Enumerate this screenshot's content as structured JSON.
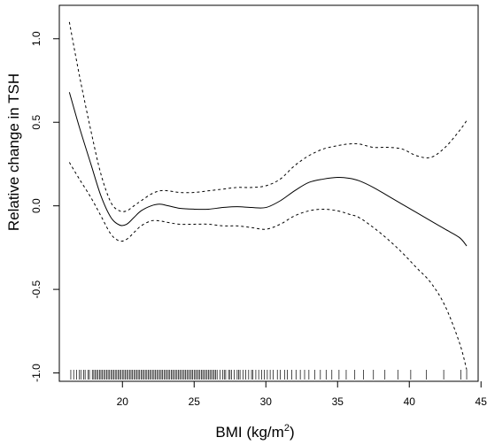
{
  "chart_data": {
    "type": "line",
    "title": "",
    "xlabel": "BMI (kg/m",
    "xlabel_superscript": "2",
    "xlabel_suffix": ")",
    "ylabel": "Relative change in TSH",
    "xlim": [
      15.6,
      44.8
    ],
    "ylim": [
      -1.05,
      1.2
    ],
    "x_ticks": [
      20,
      25,
      30,
      35,
      40,
      45
    ],
    "y_ticks": [
      -1.0,
      -0.5,
      0.0,
      0.5,
      1.0
    ],
    "y_tick_labels": [
      "-1.0",
      "-0.5",
      "0.0",
      "0.5",
      "1.0"
    ],
    "grid": false,
    "legend": "none",
    "series": [
      {
        "style": "solid",
        "x": [
          16.3,
          17.0,
          17.8,
          18.5,
          19.2,
          19.8,
          20.3,
          20.8,
          21.3,
          22.0,
          22.6,
          23.2,
          24.0,
          25.0,
          26.0,
          27.0,
          28.0,
          29.0,
          30.0,
          31.0,
          32.0,
          33.0,
          34.0,
          35.0,
          35.8,
          36.5,
          37.5,
          38.5,
          39.5,
          40.5,
          41.5,
          42.5,
          43.5,
          44.0
        ],
        "y": [
          0.68,
          0.47,
          0.25,
          0.06,
          -0.07,
          -0.115,
          -0.11,
          -0.07,
          -0.03,
          0.0,
          0.01,
          0.0,
          -0.015,
          -0.02,
          -0.02,
          -0.01,
          -0.005,
          -0.01,
          -0.01,
          0.03,
          0.09,
          0.14,
          0.16,
          0.17,
          0.165,
          0.15,
          0.11,
          0.06,
          0.01,
          -0.04,
          -0.09,
          -0.14,
          -0.19,
          -0.24
        ]
      },
      {
        "style": "dashed",
        "x": [
          16.3,
          17.0,
          17.8,
          18.5,
          19.2,
          19.8,
          20.3,
          20.8,
          21.3,
          22.0,
          22.6,
          23.2,
          24.0,
          25.0,
          26.0,
          27.0,
          28.0,
          29.0,
          30.0,
          31.0,
          32.0,
          33.0,
          34.0,
          35.0,
          35.8,
          36.5,
          37.5,
          38.5,
          39.5,
          40.5,
          41.5,
          42.5,
          43.5,
          44.0
        ],
        "y": [
          1.1,
          0.78,
          0.45,
          0.19,
          0.02,
          -0.03,
          -0.03,
          0.0,
          0.03,
          0.07,
          0.09,
          0.09,
          0.08,
          0.08,
          0.09,
          0.1,
          0.11,
          0.11,
          0.12,
          0.16,
          0.24,
          0.3,
          0.34,
          0.36,
          0.37,
          0.37,
          0.35,
          0.35,
          0.34,
          0.3,
          0.29,
          0.35,
          0.45,
          0.51
        ]
      },
      {
        "style": "dashed",
        "x": [
          16.3,
          17.0,
          17.8,
          18.5,
          19.2,
          19.8,
          20.3,
          20.8,
          21.3,
          22.0,
          22.6,
          23.2,
          24.0,
          25.0,
          26.0,
          27.0,
          28.0,
          29.0,
          30.0,
          31.0,
          32.0,
          33.0,
          34.0,
          35.0,
          35.8,
          36.5,
          37.5,
          38.5,
          39.5,
          40.5,
          41.5,
          42.5,
          43.5,
          44.0
        ],
        "y": [
          0.26,
          0.16,
          0.05,
          -0.06,
          -0.17,
          -0.21,
          -0.2,
          -0.16,
          -0.12,
          -0.09,
          -0.09,
          -0.1,
          -0.11,
          -0.11,
          -0.11,
          -0.12,
          -0.12,
          -0.13,
          -0.14,
          -0.11,
          -0.06,
          -0.03,
          -0.02,
          -0.03,
          -0.05,
          -0.07,
          -0.13,
          -0.2,
          -0.28,
          -0.37,
          -0.46,
          -0.6,
          -0.82,
          -0.98
        ]
      }
    ],
    "rug_x": [
      16.4,
      16.6,
      16.8,
      17.0,
      17.1,
      17.3,
      17.4,
      17.6,
      17.7,
      17.9,
      18.0,
      18.1,
      18.2,
      18.3,
      18.4,
      18.5,
      18.6,
      18.7,
      18.8,
      18.9,
      19.0,
      19.1,
      19.2,
      19.3,
      19.4,
      19.5,
      19.6,
      19.7,
      19.8,
      19.9,
      20.0,
      20.1,
      20.2,
      20.3,
      20.4,
      20.5,
      20.6,
      20.7,
      20.8,
      20.9,
      21.0,
      21.1,
      21.2,
      21.3,
      21.4,
      21.5,
      21.6,
      21.7,
      21.8,
      21.9,
      22.0,
      22.1,
      22.2,
      22.3,
      22.4,
      22.5,
      22.6,
      22.7,
      22.8,
      22.9,
      23.0,
      23.1,
      23.2,
      23.3,
      23.4,
      23.5,
      23.6,
      23.7,
      23.8,
      23.9,
      24.0,
      24.1,
      24.2,
      24.3,
      24.4,
      24.5,
      24.6,
      24.7,
      24.8,
      24.9,
      25.0,
      25.1,
      25.2,
      25.3,
      25.4,
      25.5,
      25.6,
      25.7,
      25.8,
      25.9,
      26.0,
      26.1,
      26.2,
      26.3,
      26.4,
      26.5,
      26.6,
      26.8,
      27.0,
      27.1,
      27.2,
      27.4,
      27.5,
      27.6,
      27.8,
      28.0,
      28.1,
      28.2,
      28.4,
      28.6,
      28.8,
      29.0,
      29.1,
      29.3,
      29.5,
      29.7,
      29.9,
      30.1,
      30.3,
      30.5,
      30.8,
      31.0,
      31.3,
      31.5,
      31.8,
      32.1,
      32.4,
      32.7,
      33.0,
      33.4,
      33.8,
      34.2,
      34.6,
      35.1,
      35.6,
      36.2,
      36.8,
      37.5,
      38.3,
      39.2,
      40.1,
      41.2,
      42.4,
      43.6,
      44.0
    ]
  }
}
